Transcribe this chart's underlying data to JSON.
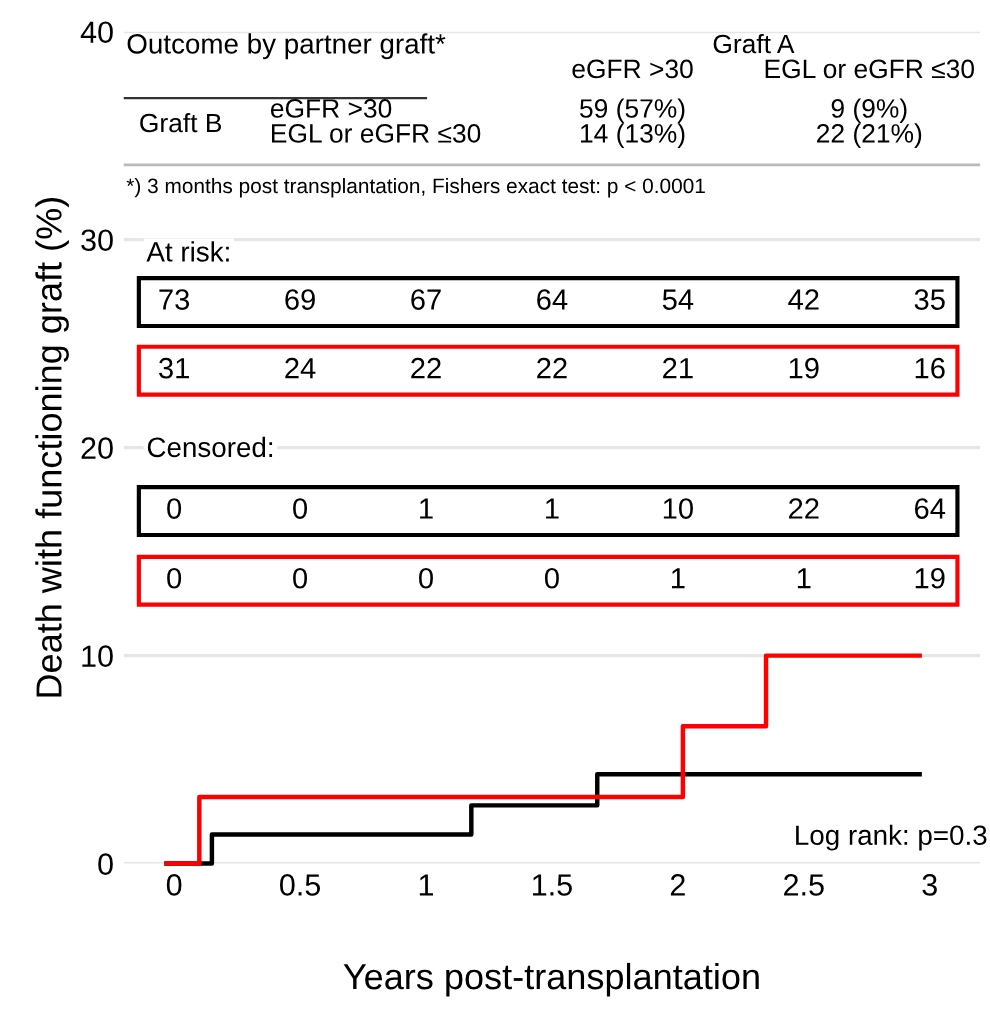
{
  "chart_data": {
    "type": "step",
    "xlabel": "Years post-transplantation",
    "ylabel": "Death with functioning graft (%)",
    "series": [
      {
        "color": "#000000",
        "x": [
          -0.03,
          0.15,
          1.18,
          1.68,
          2.96
        ],
        "values": [
          0,
          1.4,
          2.8,
          4.3,
          4.3
        ]
      },
      {
        "color": "#ff0000",
        "x": [
          -0.03,
          0.1,
          2.02,
          2.35,
          2.96
        ],
        "values": [
          0,
          3.2,
          6.6,
          10,
          10
        ]
      }
    ],
    "xlim": [
      -0.2,
      3.2
    ],
    "xticks": [
      0,
      0.5,
      1,
      1.5,
      2,
      2.5,
      3
    ],
    "ylim": [
      0,
      40
    ],
    "yticks": [
      0,
      10,
      20,
      30,
      40
    ],
    "grid": "y",
    "ref_lines": [
      {
        "axis": "y",
        "value": 33.6,
        "color": "#bbbbbb"
      }
    ],
    "annotations": [
      "Outcome by partner graft*",
      "Graft A",
      "eGFR >30",
      "EGL or eGFR ≤30",
      "Graft B",
      "eGFR >30",
      "EGL or eGFR ≤30",
      "59 (57%)",
      "9 (9%)",
      "14 (13%)",
      "22 (21%)",
      "*) 3 months post transplantation, Fishers exact test: p < 0.0001",
      "At risk:",
      "73 69 67 64 54 42 35",
      "31 24 22 22 21 19 16",
      "Censored:",
      "0 0 1 1 10 22 64",
      "0 0 0 0 1 1 19",
      "Log rank: p=0.3"
    ]
  }
}
